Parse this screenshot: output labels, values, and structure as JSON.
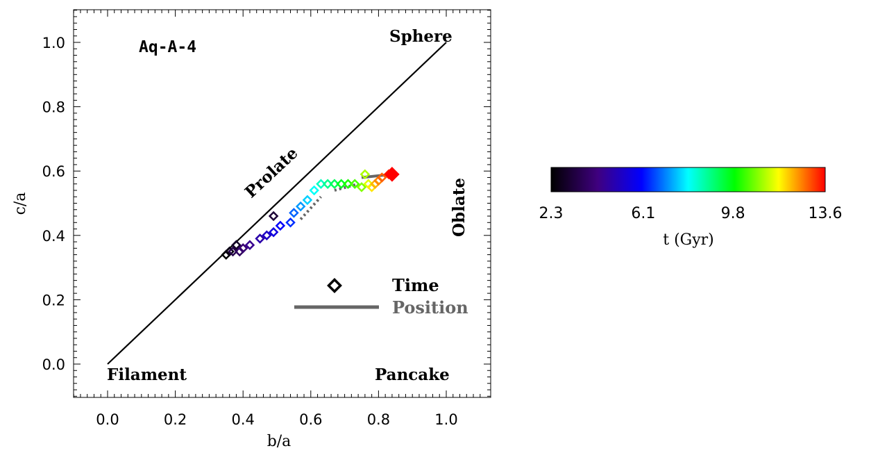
{
  "chart_data": {
    "type": "scatter",
    "title": "Aq-A-4",
    "xlabel": "b/a",
    "ylabel": "c/a",
    "xlim": [
      -0.1,
      1.1
    ],
    "ylim": [
      -0.1,
      1.1
    ],
    "xticks": [
      "0.0",
      "0.2",
      "0.4",
      "0.6",
      "0.8",
      "1.0"
    ],
    "yticks": [
      "0.0",
      "0.2",
      "0.4",
      "0.6",
      "0.8",
      "1.0"
    ],
    "x_tick_values": [
      0.0,
      0.2,
      0.4,
      0.6,
      0.8,
      1.0
    ],
    "y_tick_values": [
      0.0,
      0.2,
      0.4,
      0.6,
      0.8,
      1.0
    ],
    "reference_line": {
      "x": [
        0,
        1
      ],
      "y": [
        0,
        1
      ]
    },
    "region_labels": {
      "sphere": "Sphere",
      "prolate": "Prolate",
      "oblate": "Oblate",
      "filament": "Filament",
      "pancake": "Pancake"
    },
    "legend": {
      "time_label": "Time",
      "position_label": "Position",
      "position_color": "#666666"
    },
    "series": [
      {
        "marker": "diamond",
        "color_by": "t (Gyr)",
        "points": [
          {
            "x": 0.35,
            "y": 0.34,
            "t": 2.3
          },
          {
            "x": 0.36,
            "y": 0.35,
            "t": 2.6
          },
          {
            "x": 0.38,
            "y": 0.37,
            "t": 2.9
          },
          {
            "x": 0.49,
            "y": 0.46,
            "t": 3.1
          },
          {
            "x": 0.37,
            "y": 0.35,
            "t": 3.4
          },
          {
            "x": 0.39,
            "y": 0.35,
            "t": 3.7
          },
          {
            "x": 0.4,
            "y": 0.36,
            "t": 4.0
          },
          {
            "x": 0.42,
            "y": 0.37,
            "t": 4.4
          },
          {
            "x": 0.45,
            "y": 0.39,
            "t": 4.8
          },
          {
            "x": 0.47,
            "y": 0.4,
            "t": 5.2
          },
          {
            "x": 0.49,
            "y": 0.41,
            "t": 5.6
          },
          {
            "x": 0.51,
            "y": 0.43,
            "t": 6.0
          },
          {
            "x": 0.54,
            "y": 0.44,
            "t": 6.4
          },
          {
            "x": 0.55,
            "y": 0.47,
            "t": 6.8
          },
          {
            "x": 0.57,
            "y": 0.49,
            "t": 7.2
          },
          {
            "x": 0.59,
            "y": 0.51,
            "t": 7.6
          },
          {
            "x": 0.61,
            "y": 0.54,
            "t": 8.0
          },
          {
            "x": 0.63,
            "y": 0.56,
            "t": 8.4
          },
          {
            "x": 0.65,
            "y": 0.56,
            "t": 8.8
          },
          {
            "x": 0.67,
            "y": 0.56,
            "t": 9.2
          },
          {
            "x": 0.69,
            "y": 0.56,
            "t": 9.6
          },
          {
            "x": 0.71,
            "y": 0.56,
            "t": 10.0
          },
          {
            "x": 0.73,
            "y": 0.56,
            "t": 10.4
          },
          {
            "x": 0.75,
            "y": 0.55,
            "t": 10.8
          },
          {
            "x": 0.76,
            "y": 0.59,
            "t": 11.1
          },
          {
            "x": 0.77,
            "y": 0.56,
            "t": 11.5
          },
          {
            "x": 0.78,
            "y": 0.55,
            "t": 11.9
          },
          {
            "x": 0.79,
            "y": 0.56,
            "t": 12.3
          },
          {
            "x": 0.8,
            "y": 0.57,
            "t": 12.6
          },
          {
            "x": 0.81,
            "y": 0.58,
            "t": 12.9
          },
          {
            "x": 0.83,
            "y": 0.59,
            "t": 13.3
          },
          {
            "x": 0.84,
            "y": 0.59,
            "t": 13.6
          }
        ]
      }
    ],
    "position_segments": [
      {
        "x": [
          0.57,
          0.63
        ],
        "y": [
          0.45,
          0.52
        ],
        "dashed": true
      },
      {
        "x": [
          0.67,
          0.74
        ],
        "y": [
          0.54,
          0.56
        ],
        "dashed": true
      },
      {
        "x": [
          0.75,
          0.84
        ],
        "y": [
          0.58,
          0.59
        ],
        "dashed": false
      }
    ],
    "colorbar": {
      "label": "t (Gyr)",
      "ticks": [
        "2.3",
        "6.1",
        "9.8",
        "13.6"
      ],
      "tick_values": [
        2.3,
        6.1,
        9.8,
        13.6
      ],
      "range": [
        2.3,
        13.6
      ],
      "colors": [
        "#000000",
        "#3f007f",
        "#0000ff",
        "#00ffff",
        "#00ff00",
        "#ffff00",
        "#ff0000"
      ]
    }
  }
}
